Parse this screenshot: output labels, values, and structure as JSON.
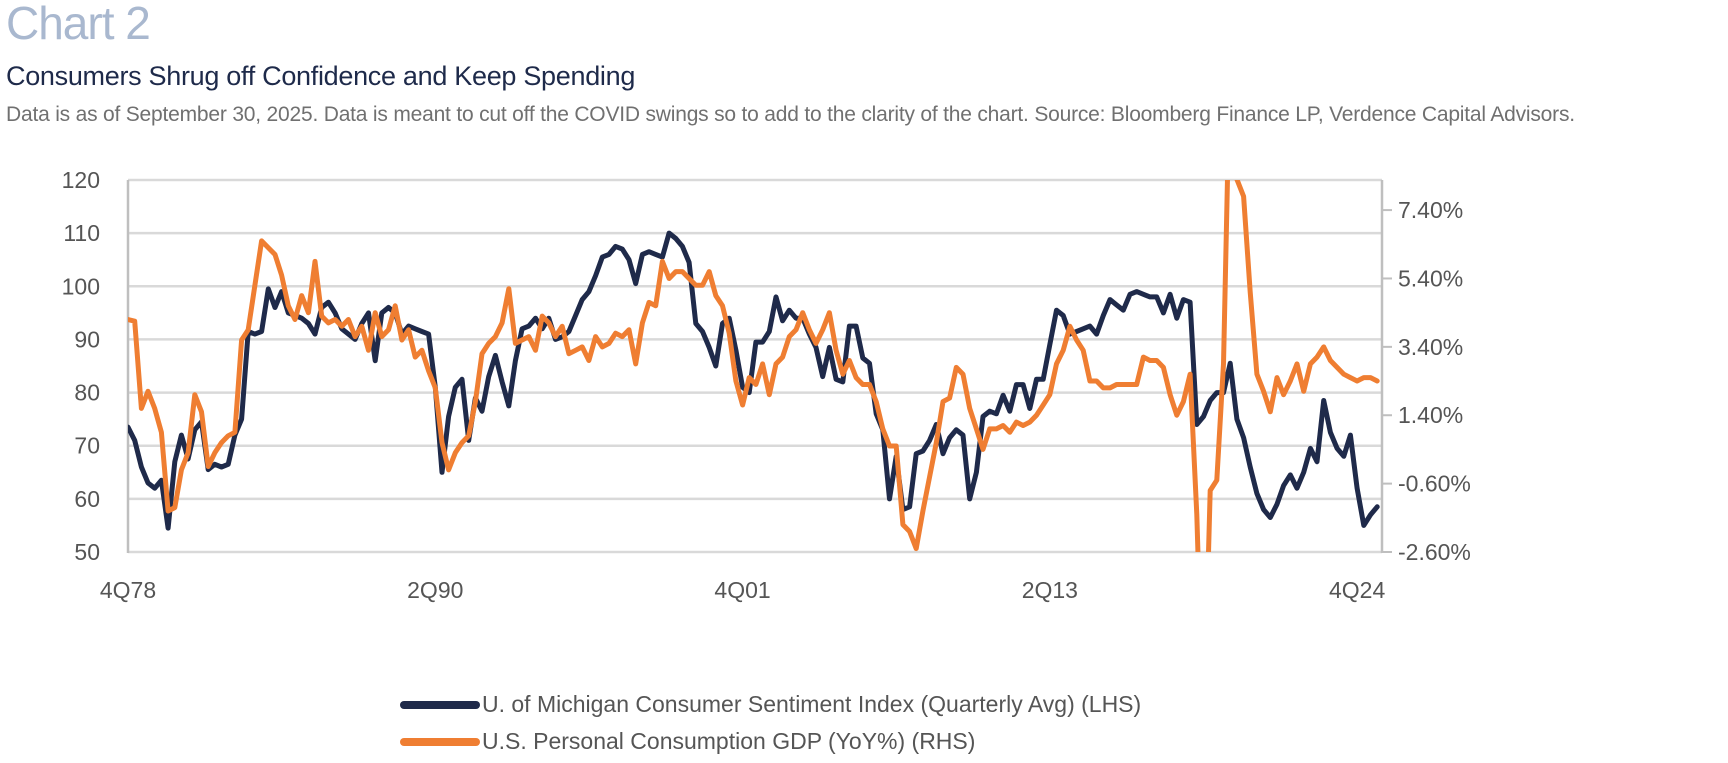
{
  "header": {
    "chart_label": "Chart 2",
    "title": "Consumers Shrug off Confidence and Keep Spending",
    "subtitle": "Data is as of September 30, 2025. Data is meant to cut off the COVID swings so to add to the clarity of the chart. Source: Bloomberg Finance LP, Verdence Capital Advisors."
  },
  "colors": {
    "sentiment": "#1f2a4a",
    "consumption": "#ef7e32",
    "grid": "#d9d9d9",
    "axis": "#bfbfbf"
  },
  "chart_data": {
    "type": "line",
    "title": "Consumers Shrug off Confidence and Keep Spending",
    "xlabel": "",
    "ylabel": "",
    "x_start": "4Q78",
    "x_end": "3Q25",
    "x_frequency": "quarterly",
    "x_tick_labels": [
      "4Q78",
      "2Q90",
      "4Q01",
      "2Q13",
      "4Q24"
    ],
    "x_tick_indices": [
      0,
      46,
      92,
      138,
      184
    ],
    "left_axis": {
      "ylim": [
        50,
        120
      ],
      "ticks": [
        50,
        60,
        70,
        80,
        90,
        100,
        110,
        120
      ],
      "tick_labels": [
        "50",
        "60",
        "70",
        "80",
        "90",
        "100",
        "110",
        "120"
      ]
    },
    "right_axis": {
      "ylim": [
        -2.6,
        8.28
      ],
      "ticks": [
        -2.6,
        -0.6,
        1.4,
        3.4,
        5.4,
        7.4
      ],
      "tick_labels": [
        "-2.60%",
        "-0.60%",
        "1.40%",
        "3.40%",
        "5.40%",
        "7.40%"
      ]
    },
    "grid": true,
    "legend_position": "bottom",
    "series": [
      {
        "name": "U. of Michigan Consumer Sentiment Index (Quarterly Avg) (LHS)",
        "axis": "left",
        "values": [
          73.5,
          71,
          66,
          63,
          62,
          63.5,
          54.5,
          67,
          72,
          67.5,
          73,
          74.5,
          65.5,
          66.5,
          66,
          66.5,
          72,
          75,
          91.5,
          91,
          91.5,
          99.5,
          96,
          99,
          95,
          94.5,
          94,
          93,
          91,
          96,
          97,
          95,
          92,
          91,
          90,
          93,
          95,
          86,
          95,
          96,
          95,
          91,
          92.5,
          92,
          91.5,
          91,
          81,
          65,
          75.5,
          81,
          82.5,
          71,
          79,
          76.5,
          83,
          87,
          82,
          77.5,
          86,
          92,
          92.5,
          94,
          92,
          94,
          90,
          90.5,
          91.5,
          94.5,
          97.5,
          99,
          102,
          105.5,
          106,
          107.5,
          107,
          105,
          100.5,
          106,
          106.5,
          106,
          105.5,
          110,
          109,
          107.5,
          104.5,
          93,
          91.5,
          88.5,
          85,
          93,
          94,
          88,
          81,
          80,
          89.5,
          89.5,
          91.5,
          98,
          93.5,
          95.5,
          94,
          94,
          91,
          88.5,
          83,
          88.5,
          82.5,
          82,
          92.5,
          92.5,
          86.5,
          85.5,
          76,
          73,
          60,
          68,
          58,
          58.5,
          68.5,
          69,
          71,
          74,
          68.5,
          71.5,
          73,
          72,
          60,
          65,
          75.5,
          76.5,
          76,
          79.5,
          76.5,
          81.5,
          81.5,
          77,
          82.5,
          82.5,
          89,
          95.5,
          94.5,
          91,
          91.5,
          92,
          92.5,
          91,
          94.5,
          97.5,
          96.5,
          95.5,
          98.5,
          99,
          98.5,
          98,
          98,
          95,
          98.5,
          94,
          97.5,
          97,
          74,
          75.5,
          78.5,
          80,
          80,
          85.5,
          75,
          71.5,
          66,
          61,
          58,
          56.5,
          59,
          62.5,
          64.5,
          62,
          65,
          69.5,
          67,
          78.5,
          72.5,
          69.5,
          68,
          72,
          62,
          55,
          57,
          58.5
        ]
      },
      {
        "name": "U.S. Personal Consumption GDP (YoY%) (RHS)",
        "axis": "right",
        "values": [
          4.2,
          4.15,
          1.6,
          2.1,
          1.6,
          0.9,
          -1.4,
          -1.3,
          -0.2,
          0.3,
          2.0,
          1.5,
          -0.1,
          0.3,
          0.6,
          0.8,
          0.9,
          3.6,
          3.9,
          5.2,
          6.5,
          6.3,
          6.1,
          5.5,
          4.6,
          4.2,
          4.9,
          4.4,
          5.9,
          4.3,
          4.1,
          4.2,
          4.0,
          4.2,
          3.7,
          4.0,
          3.3,
          4.4,
          3.7,
          3.9,
          4.6,
          3.6,
          3.9,
          3.1,
          3.3,
          2.7,
          2.2,
          0.6,
          -0.2,
          0.3,
          0.6,
          0.8,
          1.8,
          3.2,
          3.5,
          3.7,
          4.1,
          5.1,
          3.5,
          3.6,
          3.7,
          3.3,
          4.3,
          4.1,
          3.7,
          4.0,
          3.2,
          3.3,
          3.4,
          3.0,
          3.7,
          3.4,
          3.5,
          3.8,
          3.7,
          3.9,
          2.9,
          4.1,
          4.7,
          4.6,
          5.9,
          5.4,
          5.6,
          5.6,
          5.4,
          5.2,
          5.2,
          5.6,
          4.9,
          4.6,
          3.8,
          2.4,
          1.7,
          2.5,
          2.3,
          2.9,
          2.0,
          2.9,
          3.1,
          3.7,
          3.9,
          4.4,
          3.9,
          3.5,
          3.9,
          4.4,
          3.3,
          2.6,
          3.0,
          2.5,
          2.3,
          2.3,
          1.8,
          1.0,
          0.5,
          0.5,
          -1.8,
          -2.0,
          -2.5,
          -1.4,
          -0.4,
          0.6,
          1.8,
          1.9,
          2.8,
          2.6,
          1.6,
          1.0,
          0.4,
          1.0,
          1.0,
          1.1,
          0.9,
          1.2,
          1.1,
          1.2,
          1.4,
          1.7,
          2.0,
          2.9,
          3.3,
          4.0,
          3.6,
          3.3,
          2.4,
          2.4,
          2.2,
          2.2,
          2.3,
          2.3,
          2.3,
          2.3,
          3.1,
          3.0,
          3.0,
          2.8,
          2.0,
          1.4,
          1.8,
          2.6,
          -1.5,
          -8.0,
          -0.8,
          -0.5,
          2.9,
          12.0,
          8.3,
          7.8,
          5.0,
          2.6,
          2.1,
          1.5,
          2.5,
          2.0,
          2.4,
          2.9,
          2.1,
          2.9,
          3.1,
          3.4,
          3.0,
          2.8,
          2.6,
          2.5,
          2.4,
          2.5,
          2.5,
          2.4
        ]
      }
    ]
  }
}
